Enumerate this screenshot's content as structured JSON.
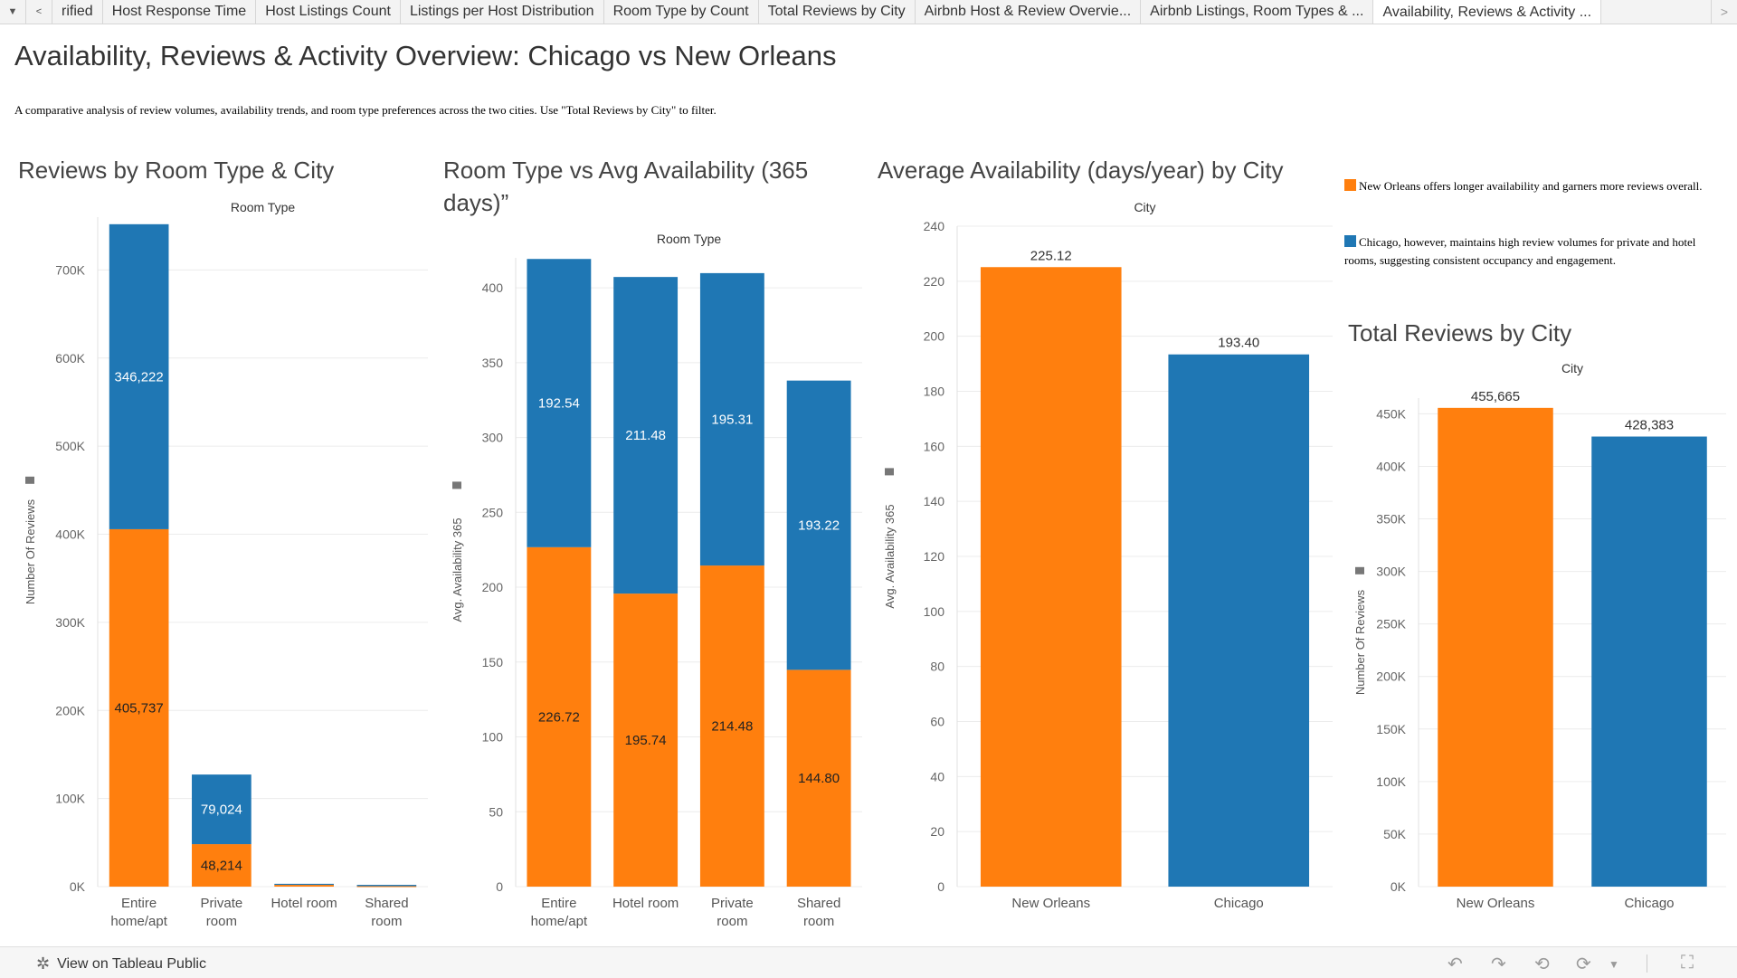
{
  "tabs": [
    "rified",
    "Host Response Time",
    "Host Listings Count",
    "Listings per Host Distribution",
    "Room Type by Count",
    "Total Reviews by City",
    "Airbnb Host & Review Overvie...",
    "Airbnb Listings, Room Types & ...",
    "Availability, Reviews & Activity ..."
  ],
  "active_tab": 8,
  "title": "Availability, Reviews & Activity Overview: Chicago vs New Orleans",
  "subtitle": "A comparative analysis of review volumes, availability trends, and room type preferences across the two cities.  Use \"Total Reviews by City\" to filter.",
  "colors": {
    "new_orleans": "#ff7f0e",
    "chicago": "#1f77b4",
    "grid": "#ececec",
    "axis_text": "#666666"
  },
  "notes": {
    "new_orleans": "New Orleans offers longer availability and garners more reviews overall.",
    "chicago": "Chicago, however, maintains high review volumes for private and hotel rooms, suggesting consistent occupancy and engagement."
  },
  "footer": {
    "tableau_link": "View on Tableau Public"
  },
  "chart_data": [
    {
      "id": "reviews_room_type",
      "title": "Reviews by Room Type & City",
      "type": "bar",
      "stacked": true,
      "header": "Room Type",
      "ylabel": "Number Of Reviews",
      "categories": [
        "Entire home/apt",
        "Private room",
        "Hotel room",
        "Shared room"
      ],
      "ylim": [
        0,
        760000
      ],
      "yticks": [
        0,
        100000,
        200000,
        300000,
        400000,
        500000,
        600000,
        700000
      ],
      "ytick_labels": [
        "0K",
        "100K",
        "200K",
        "300K",
        "400K",
        "500K",
        "600K",
        "700K"
      ],
      "series": [
        {
          "color": "#ff7f0e",
          "values": [
            405737,
            48214,
            2000,
            500
          ],
          "labels": [
            "405,737",
            "48,214",
            "",
            ""
          ]
        },
        {
          "color": "#1f77b4",
          "values": [
            346222,
            79024,
            1200,
            1500
          ],
          "labels": [
            "346,222",
            "79,024",
            "",
            ""
          ]
        }
      ]
    },
    {
      "id": "room_type_availability",
      "title": "Room Type vs Avg Availability (365 days)”",
      "type": "bar",
      "stacked": true,
      "header": "Room Type",
      "ylabel": "Avg. Availability 365",
      "categories": [
        "Entire home/apt",
        "Hotel room",
        "Private room",
        "Shared room"
      ],
      "ylim": [
        0,
        420
      ],
      "yticks": [
        0,
        50,
        100,
        150,
        200,
        250,
        300,
        350,
        400
      ],
      "ytick_labels": [
        "0",
        "50",
        "100",
        "150",
        "200",
        "250",
        "300",
        "350",
        "400"
      ],
      "series": [
        {
          "color": "#ff7f0e",
          "values": [
            226.72,
            195.74,
            214.48,
            144.8
          ],
          "labels": [
            "226.72",
            "195.74",
            "214.48",
            "144.80"
          ]
        },
        {
          "color": "#1f77b4",
          "values": [
            192.54,
            211.48,
            195.31,
            193.22
          ],
          "labels": [
            "192.54",
            "211.48",
            "195.31",
            "193.22"
          ]
        }
      ]
    },
    {
      "id": "avg_availability_city",
      "title": "Average Availability (days/year) by City",
      "type": "bar",
      "stacked": false,
      "header": "City",
      "ylabel": "Avg. Availability 365",
      "categories": [
        "New Orleans",
        "Chicago"
      ],
      "colors": [
        "#ff7f0e",
        "#1f77b4"
      ],
      "ylim": [
        0,
        240
      ],
      "yticks": [
        0,
        20,
        40,
        60,
        80,
        100,
        120,
        140,
        160,
        180,
        200,
        220,
        240
      ],
      "ytick_labels": [
        "0",
        "20",
        "40",
        "60",
        "80",
        "100",
        "120",
        "140",
        "160",
        "180",
        "200",
        "220",
        "240"
      ],
      "values": [
        225.12,
        193.4
      ],
      "labels": [
        "225.12",
        "193.40"
      ]
    },
    {
      "id": "total_reviews_city",
      "title": "Total Reviews by City",
      "type": "bar",
      "stacked": false,
      "header": "City",
      "ylabel": "Number Of Reviews",
      "categories": [
        "New Orleans",
        "Chicago"
      ],
      "colors": [
        "#ff7f0e",
        "#1f77b4"
      ],
      "ylim": [
        0,
        465000
      ],
      "yticks": [
        0,
        50000,
        100000,
        150000,
        200000,
        250000,
        300000,
        350000,
        400000,
        450000
      ],
      "ytick_labels": [
        "0K",
        "50K",
        "100K",
        "150K",
        "200K",
        "250K",
        "300K",
        "350K",
        "400K",
        "450K"
      ],
      "values": [
        455665,
        428383
      ],
      "labels": [
        "455,665",
        "428,383"
      ]
    }
  ]
}
